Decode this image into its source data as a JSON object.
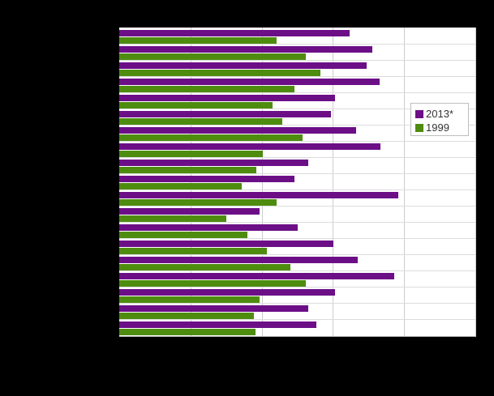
{
  "window": {
    "background_color": "#000000",
    "plot_background_color": "#ffffff",
    "gridline_color": "#cccccc",
    "band_separator_color": "#dcdcdc"
  },
  "legend": {
    "position": "inside-right",
    "border_color": "#bfbfbf"
  },
  "chart_data": {
    "type": "bar",
    "orientation": "horizontal",
    "title": "",
    "xlabel": "",
    "ylabel": "",
    "axis_labels_visible": false,
    "category_labels_visible": false,
    "grid": true,
    "xlim": [
      0,
      100
    ],
    "gridline_step": 20,
    "legend_position": "right-inside",
    "categories": [
      "",
      "",
      "",
      "",
      "",
      "",
      "",
      "",
      "",
      "",
      "",
      "",
      "",
      "",
      "",
      "",
      "",
      "",
      ""
    ],
    "series": [
      {
        "name": "2013*",
        "color": "#6c0f87",
        "values": [
          64.8,
          71.1,
          69.5,
          73.1,
          60.5,
          59.5,
          66.5,
          73.3,
          53.0,
          49.1,
          78.4,
          39.4,
          50.0,
          60.2,
          67.0,
          77.3,
          60.6,
          53.0,
          55.4
        ]
      },
      {
        "name": "1999",
        "color": "#4e8c10",
        "values": [
          44.3,
          52.5,
          56.4,
          49.1,
          43.0,
          45.7,
          51.5,
          40.4,
          38.4,
          34.5,
          44.3,
          30.1,
          36.1,
          41.4,
          48.0,
          52.3,
          39.3,
          37.7,
          38.3
        ]
      }
    ]
  }
}
